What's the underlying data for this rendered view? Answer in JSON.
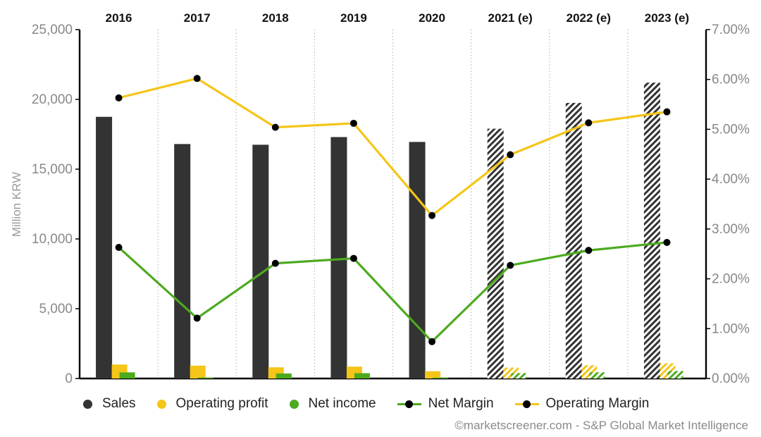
{
  "colors": {
    "sales": "#333333",
    "operating_profit": "#f5c518",
    "net_income": "#4caa1e",
    "net_margin_line": "#4caa1e",
    "operating_margin_line": "#f5c518",
    "marker": "#000000",
    "axis": "#000000",
    "grid": "#bbbbbb",
    "tick_text": "#888888"
  },
  "legend": {
    "sales": "Sales",
    "operating_profit": "Operating profit",
    "net_income": "Net income",
    "net_margin": "Net Margin",
    "operating_margin": "Operating Margin"
  },
  "credit": "©marketscreener.com - S&P Global Market Intelligence",
  "chart_data": {
    "type": "bar",
    "title": "",
    "xlabel": "",
    "ylabel": "Million KRW",
    "y2label": "",
    "categories": [
      "2016",
      "2017",
      "2018",
      "2019",
      "2020",
      "2021 (e)",
      "2022 (e)",
      "2023 (e)"
    ],
    "estimated_from_index": 5,
    "ylim": [
      0,
      25000
    ],
    "yticks": [
      0,
      5000,
      10000,
      15000,
      20000,
      25000
    ],
    "ytick_labels": [
      "0",
      "5,000",
      "10,000",
      "15,000",
      "20,000",
      "25,000"
    ],
    "y2lim": [
      0,
      7
    ],
    "y2ticks": [
      0,
      1,
      2,
      3,
      4,
      5,
      6,
      7
    ],
    "y2tick_labels": [
      "0.00%",
      "1.00%",
      "2.00%",
      "3.00%",
      "4.00%",
      "5.00%",
      "6.00%",
      "7.00%"
    ],
    "grid": "vertical dotted separators between categories",
    "legend_position": "bottom",
    "series": [
      {
        "name": "Sales",
        "kind": "bar",
        "axis": "left",
        "values": [
          18750,
          16800,
          16750,
          17300,
          16950,
          17900,
          19750,
          21200
        ]
      },
      {
        "name": "Operating profit",
        "kind": "bar",
        "axis": "left",
        "values": [
          1000,
          920,
          800,
          850,
          520,
          780,
          960,
          1090
        ]
      },
      {
        "name": "Net income",
        "kind": "bar",
        "axis": "left",
        "values": [
          440,
          70,
          360,
          380,
          60,
          380,
          440,
          540
        ]
      },
      {
        "name": "Net Margin",
        "kind": "line",
        "axis": "right",
        "values": [
          2.63,
          1.21,
          2.31,
          2.41,
          0.74,
          2.27,
          2.57,
          2.73
        ]
      },
      {
        "name": "Operating Margin",
        "kind": "line",
        "axis": "right",
        "values": [
          5.63,
          6.02,
          5.04,
          5.12,
          3.27,
          4.49,
          5.13,
          5.35
        ]
      }
    ]
  }
}
